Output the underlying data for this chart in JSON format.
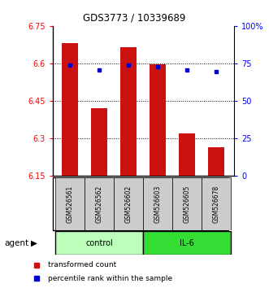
{
  "title": "GDS3773 / 10339689",
  "samples": [
    "GSM526561",
    "GSM526562",
    "GSM526602",
    "GSM526603",
    "GSM526605",
    "GSM526678"
  ],
  "bar_values": [
    6.68,
    6.42,
    6.665,
    6.595,
    6.32,
    6.265
  ],
  "bar_base": 6.15,
  "percentile_values": [
    6.593,
    6.574,
    6.592,
    6.585,
    6.574,
    6.567
  ],
  "ylim": [
    6.15,
    6.75
  ],
  "yticks": [
    6.15,
    6.3,
    6.45,
    6.6,
    6.75
  ],
  "ytick_labels": [
    "6.15",
    "6.3",
    "6.45",
    "6.6",
    "6.75"
  ],
  "y2ticks": [
    0,
    25,
    50,
    75,
    100
  ],
  "y2tick_labels": [
    "0",
    "25",
    "50",
    "75",
    "100%"
  ],
  "bar_color": "#cc1111",
  "dot_color": "#0000cc",
  "sample_box_color": "#cccccc",
  "control_color": "#bbffbb",
  "il6_color": "#33dd33",
  "groups": [
    {
      "label": "control",
      "start": 0,
      "end": 2,
      "color": "#bbffbb"
    },
    {
      "label": "IL-6",
      "start": 3,
      "end": 5,
      "color": "#33dd33"
    }
  ],
  "legend_items": [
    {
      "label": "transformed count",
      "color": "#cc1111"
    },
    {
      "label": "percentile rank within the sample",
      "color": "#0000cc"
    }
  ],
  "bar_width": 0.55,
  "agent_label": "agent"
}
